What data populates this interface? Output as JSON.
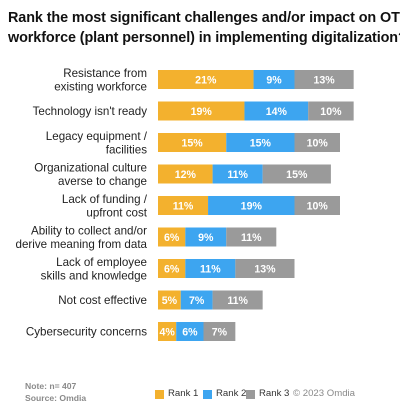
{
  "chart_data": {
    "type": "bar",
    "orientation": "horizontal",
    "stacked": true,
    "title": "Rank the most significant challenges and/or impact on OT workforce (plant personnel) in implementing digitalization?",
    "title_lines": [
      "Rank the most significant challenges and/or impact on OT",
      "workforce (plant personnel) in implementing digitalization?"
    ],
    "categories": [
      [
        "Resistance from",
        "existing workforce"
      ],
      [
        "Technology isn't ready"
      ],
      [
        "Legacy equipment /",
        "facilities"
      ],
      [
        "Organizational culture",
        "averse to change"
      ],
      [
        "Lack of funding /",
        "upfront cost"
      ],
      [
        "Ability to collect and/or",
        "derive meaning from data"
      ],
      [
        "Lack of employee",
        "skills and knowledge"
      ],
      [
        "Not cost effective"
      ],
      [
        "Cybersecurity concerns"
      ]
    ],
    "series": [
      {
        "name": "Rank 1",
        "color": "#F3B12E",
        "values": [
          21,
          19,
          15,
          12,
          11,
          6,
          6,
          5,
          4
        ]
      },
      {
        "name": "Rank 2",
        "color": "#3DA5F0",
        "values": [
          9,
          14,
          15,
          11,
          19,
          9,
          11,
          7,
          6
        ]
      },
      {
        "name": "Rank 3",
        "color": "#9A9A9A",
        "values": [
          13,
          10,
          10,
          15,
          10,
          11,
          13,
          11,
          7
        ]
      }
    ],
    "value_suffix": "%",
    "legend_position": "bottom",
    "grid": false
  },
  "note": "Note:  n= 407",
  "source": "Source: Omdia",
  "copyright": "© 2023 Omdia"
}
